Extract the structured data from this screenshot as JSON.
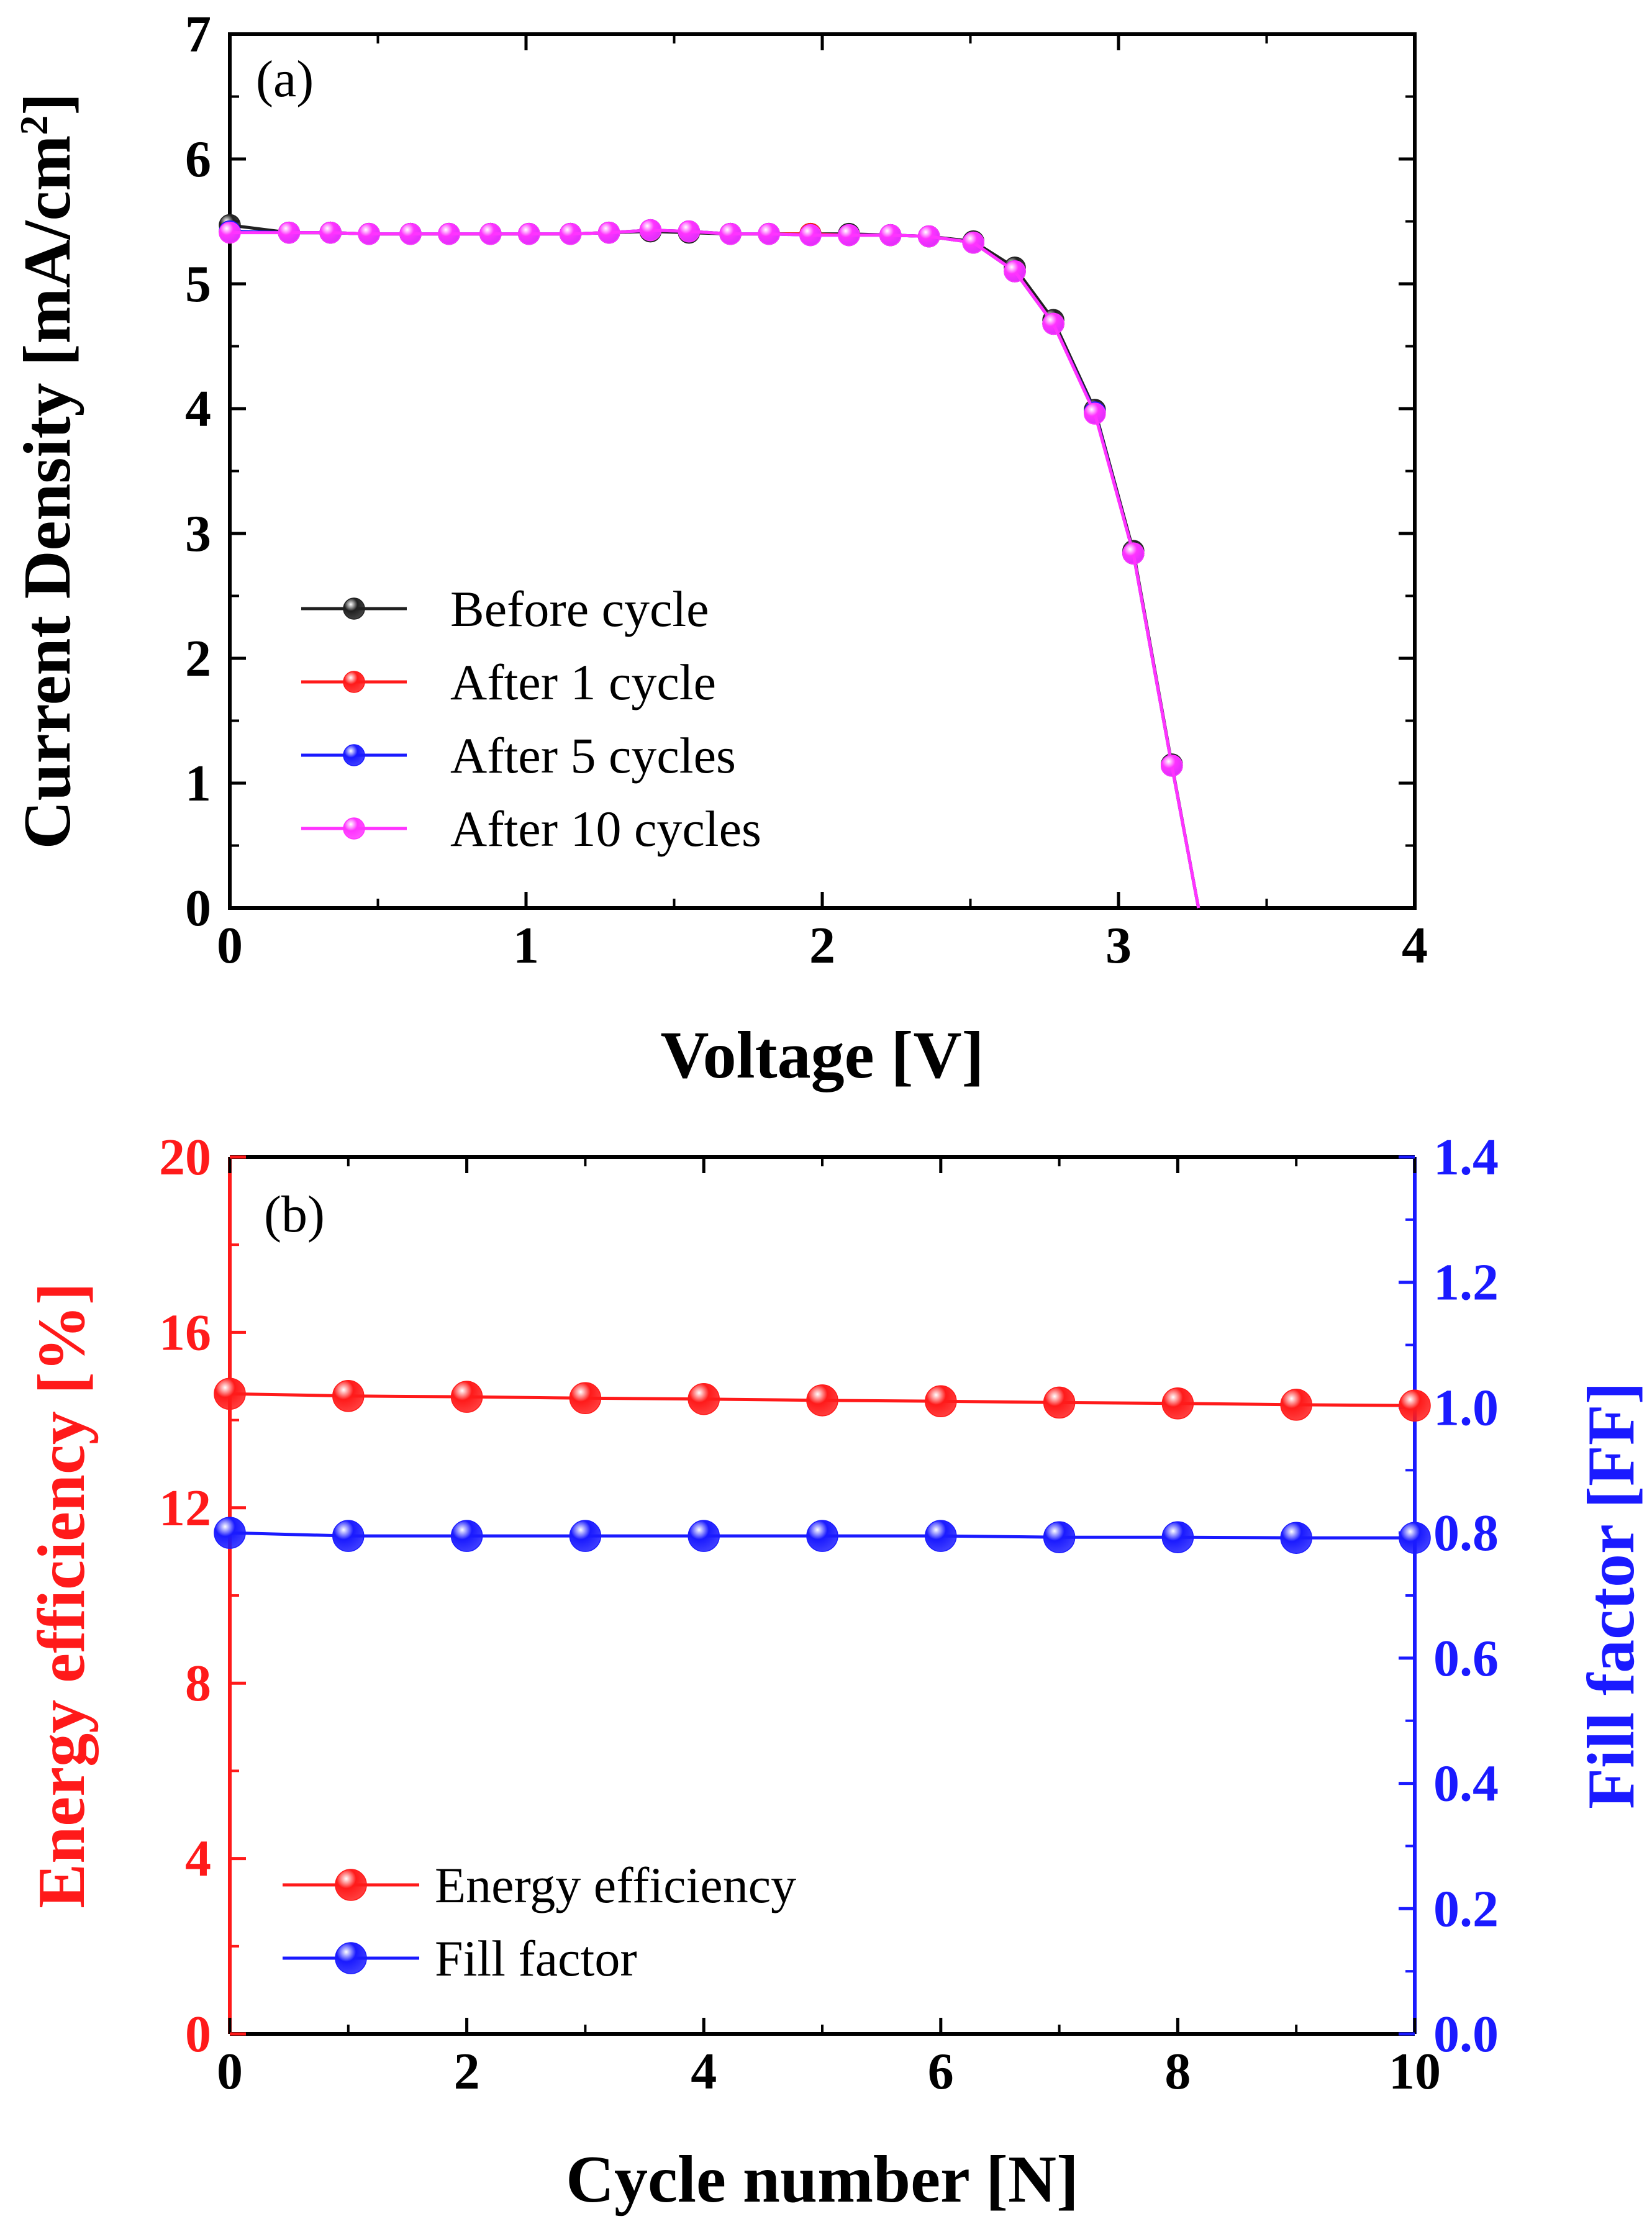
{
  "chart_data": [
    {
      "panel": "(a)",
      "type": "line",
      "xlabel": "Voltage [V]",
      "ylabel": "Current Density [mA/cm",
      "ylabel_sup": "2",
      "ylabel_end": "]",
      "xlim": [
        0,
        4
      ],
      "ylim": [
        0,
        7
      ],
      "xticks": [
        "0",
        "1",
        "2",
        "3",
        "4"
      ],
      "yticks": [
        "0",
        "1",
        "2",
        "3",
        "4",
        "5",
        "6",
        "7"
      ],
      "legend_position": "bottom-left",
      "x": [
        0,
        0.2,
        0.34,
        0.47,
        0.61,
        0.74,
        0.88,
        1.01,
        1.15,
        1.28,
        1.42,
        1.55,
        1.69,
        1.82,
        1.96,
        2.09,
        2.23,
        2.36,
        2.51,
        2.65,
        2.78,
        2.92,
        3.05,
        3.18,
        3.27
      ],
      "series": [
        {
          "name": "Before cycle",
          "color": "#202020",
          "values": [
            5.47,
            5.41,
            5.41,
            5.4,
            5.4,
            5.4,
            5.4,
            5.4,
            5.4,
            5.41,
            5.42,
            5.41,
            5.4,
            5.4,
            5.4,
            5.4,
            5.39,
            5.38,
            5.34,
            5.13,
            4.71,
            3.99,
            2.86,
            1.15,
            0
          ]
        },
        {
          "name": "After 1 cycle",
          "color": "#ff1a1a",
          "values": [
            5.42,
            5.41,
            5.41,
            5.4,
            5.4,
            5.4,
            5.4,
            5.4,
            5.4,
            5.41,
            5.43,
            5.42,
            5.4,
            5.4,
            5.4,
            5.39,
            5.39,
            5.38,
            5.33,
            5.1,
            4.68,
            3.97,
            2.84,
            1.14,
            0
          ]
        },
        {
          "name": "After 5 cycles",
          "color": "#1a1aff",
          "values": [
            5.42,
            5.41,
            5.41,
            5.4,
            5.4,
            5.4,
            5.4,
            5.4,
            5.4,
            5.41,
            5.43,
            5.42,
            5.4,
            5.4,
            5.39,
            5.39,
            5.39,
            5.38,
            5.33,
            5.1,
            4.68,
            3.97,
            2.84,
            1.14,
            0
          ]
        },
        {
          "name": "After 10 cycles",
          "color": "#ff33ff",
          "values": [
            5.41,
            5.41,
            5.41,
            5.4,
            5.4,
            5.4,
            5.4,
            5.4,
            5.4,
            5.41,
            5.43,
            5.42,
            5.4,
            5.4,
            5.39,
            5.39,
            5.39,
            5.38,
            5.33,
            5.1,
            4.68,
            3.96,
            2.84,
            1.14,
            0
          ]
        }
      ]
    },
    {
      "panel": "(b)",
      "type": "line",
      "xlabel": "Cycle number [N]",
      "ylabel": "Energy efficiency [%]",
      "ylabel_right": "Fill factor [FF]",
      "xlim": [
        0,
        10
      ],
      "ylim": [
        0,
        20
      ],
      "ylim_right": [
        0,
        1.4
      ],
      "xticks": [
        "0",
        "2",
        "4",
        "6",
        "8",
        "10"
      ],
      "yticks": [
        "0",
        "4",
        "8",
        "12",
        "16",
        "20"
      ],
      "yticks_right": [
        "0.0",
        "0.2",
        "0.4",
        "0.6",
        "0.8",
        "1.0",
        "1.2",
        "1.4"
      ],
      "legend_position": "bottom-left",
      "x": [
        0,
        1,
        2,
        3,
        4,
        5,
        6,
        7,
        8,
        9,
        10
      ],
      "series": [
        {
          "name": "Energy efficiency",
          "axis": "left",
          "color": "#ff1a1a",
          "values": [
            14.6,
            14.55,
            14.53,
            14.5,
            14.48,
            14.45,
            14.43,
            14.4,
            14.38,
            14.35,
            14.33
          ]
        },
        {
          "name": "Fill factor",
          "axis": "right",
          "color": "#1a1aff",
          "values": [
            0.8,
            0.795,
            0.795,
            0.795,
            0.795,
            0.795,
            0.795,
            0.793,
            0.793,
            0.792,
            0.792
          ]
        }
      ]
    }
  ]
}
